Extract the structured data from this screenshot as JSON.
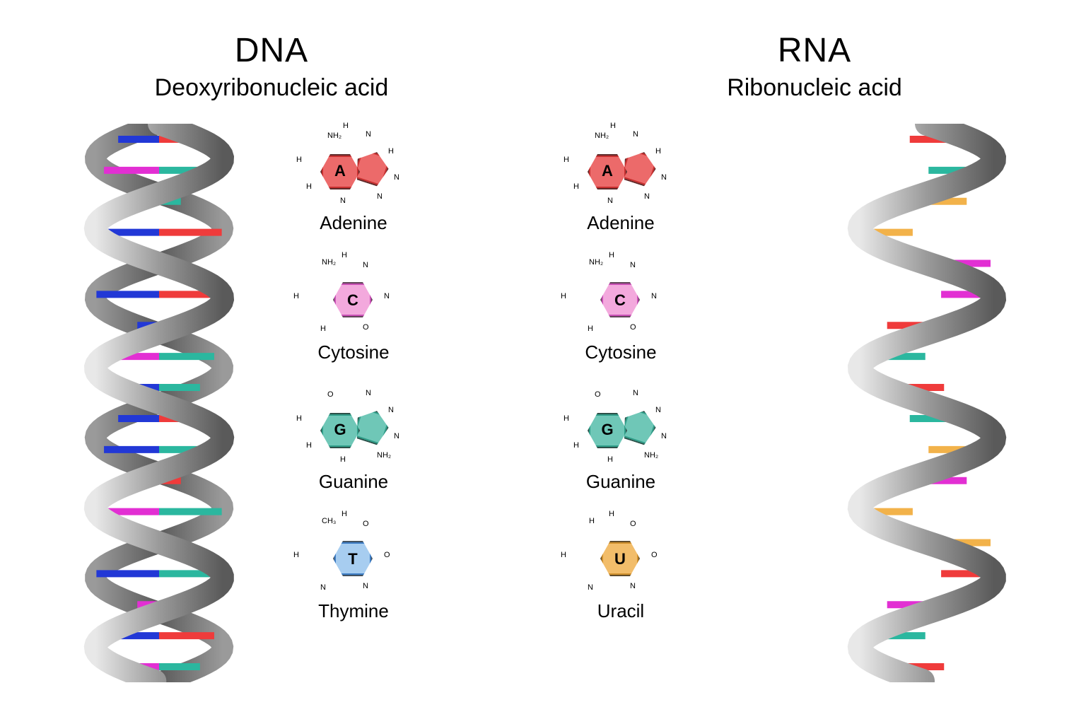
{
  "figure": {
    "type": "infographic",
    "background_color": "#ffffff",
    "text_color": "#000000",
    "title_fontsize": 48,
    "subtitle_fontsize": 34,
    "base_label_fontsize": 26,
    "base_letter_fontsize": 22,
    "atom_label_fontsize": 11
  },
  "palette": {
    "adenine": "#ec6a6a",
    "adenine_edge": "#c73030",
    "cytosine": "#f3a9dd",
    "cytosine_edge": "#c84fb5",
    "guanine": "#6fc7b7",
    "guanine_edge": "#2f9d88",
    "thymine": "#a7cdf0",
    "thymine_edge": "#3b7bc4",
    "uracil": "#f2bd6a",
    "uracil_edge": "#cf8f2c",
    "helix_dark": "#5a5a5a",
    "helix_mid": "#9a9a9a",
    "helix_light": "#e8e8e8",
    "rung_red": "#ef3b3b",
    "rung_blue": "#2238d6",
    "rung_teal": "#2bb79f",
    "rung_magenta": "#e22fd3",
    "rung_orange": "#f2b24a"
  },
  "dna": {
    "title": "DNA",
    "subtitle": "Deoxyribonucleic acid",
    "helix": {
      "type": "double",
      "turns": 4,
      "rung_pairs": [
        [
          "rung_blue",
          "rung_red"
        ],
        [
          "rung_magenta",
          "rung_teal"
        ],
        [
          "rung_blue",
          "rung_teal"
        ],
        [
          "rung_blue",
          "rung_red"
        ],
        [
          "rung_magenta",
          "rung_teal"
        ],
        [
          "rung_blue",
          "rung_red"
        ],
        [
          "rung_blue",
          "rung_red"
        ],
        [
          "rung_magenta",
          "rung_teal"
        ],
        [
          "rung_blue",
          "rung_teal"
        ],
        [
          "rung_blue",
          "rung_red"
        ],
        [
          "rung_blue",
          "rung_teal"
        ],
        [
          "rung_magenta",
          "rung_red"
        ],
        [
          "rung_magenta",
          "rung_teal"
        ],
        [
          "rung_blue",
          "rung_red"
        ],
        [
          "rung_blue",
          "rung_teal"
        ],
        [
          "rung_magenta",
          "rung_red"
        ],
        [
          "rung_blue",
          "rung_red"
        ],
        [
          "rung_magenta",
          "rung_teal"
        ]
      ]
    },
    "bases": [
      {
        "letter": "A",
        "name": "Adenine",
        "shape": "purine",
        "fill": "adenine",
        "atoms": [
          "NH₂",
          "N",
          "H",
          "N",
          "N",
          "N",
          "H",
          "H",
          "H"
        ]
      },
      {
        "letter": "C",
        "name": "Cytosine",
        "shape": "pyrimidine",
        "fill": "cytosine",
        "atoms": [
          "NH₂",
          "N",
          "N",
          "O",
          "H",
          "H",
          "H"
        ]
      },
      {
        "letter": "G",
        "name": "Guanine",
        "shape": "purine",
        "fill": "guanine",
        "atoms": [
          "O",
          "N",
          "N",
          "N",
          "NH₂",
          "H",
          "H",
          "H"
        ]
      },
      {
        "letter": "T",
        "name": "Thymine",
        "shape": "pyrimidine",
        "fill": "thymine",
        "atoms": [
          "CH₃",
          "O",
          "O",
          "N",
          "N",
          "H",
          "H"
        ]
      }
    ]
  },
  "rna": {
    "title": "RNA",
    "subtitle": "Ribonucleic acid",
    "helix": {
      "type": "single",
      "turns": 4,
      "rungs": [
        "rung_red",
        "rung_teal",
        "rung_orange",
        "rung_orange",
        "rung_magenta",
        "rung_magenta",
        "rung_red",
        "rung_teal",
        "rung_red",
        "rung_teal",
        "rung_orange",
        "rung_magenta",
        "rung_orange",
        "rung_orange",
        "rung_red",
        "rung_magenta",
        "rung_teal",
        "rung_red"
      ]
    },
    "bases": [
      {
        "letter": "A",
        "name": "Adenine",
        "shape": "purine",
        "fill": "adenine",
        "atoms": [
          "NH₂",
          "N",
          "H",
          "N",
          "N",
          "N",
          "H",
          "H",
          "H"
        ]
      },
      {
        "letter": "C",
        "name": "Cytosine",
        "shape": "pyrimidine",
        "fill": "cytosine",
        "atoms": [
          "NH₂",
          "N",
          "N",
          "O",
          "H",
          "H",
          "H"
        ]
      },
      {
        "letter": "G",
        "name": "Guanine",
        "shape": "purine",
        "fill": "guanine",
        "atoms": [
          "O",
          "N",
          "N",
          "N",
          "NH₂",
          "H",
          "H",
          "H"
        ]
      },
      {
        "letter": "U",
        "name": "Uracil",
        "shape": "pyrimidine",
        "fill": "uracil",
        "atoms": [
          "H",
          "O",
          "O",
          "N",
          "N",
          "H",
          "H"
        ]
      }
    ]
  }
}
